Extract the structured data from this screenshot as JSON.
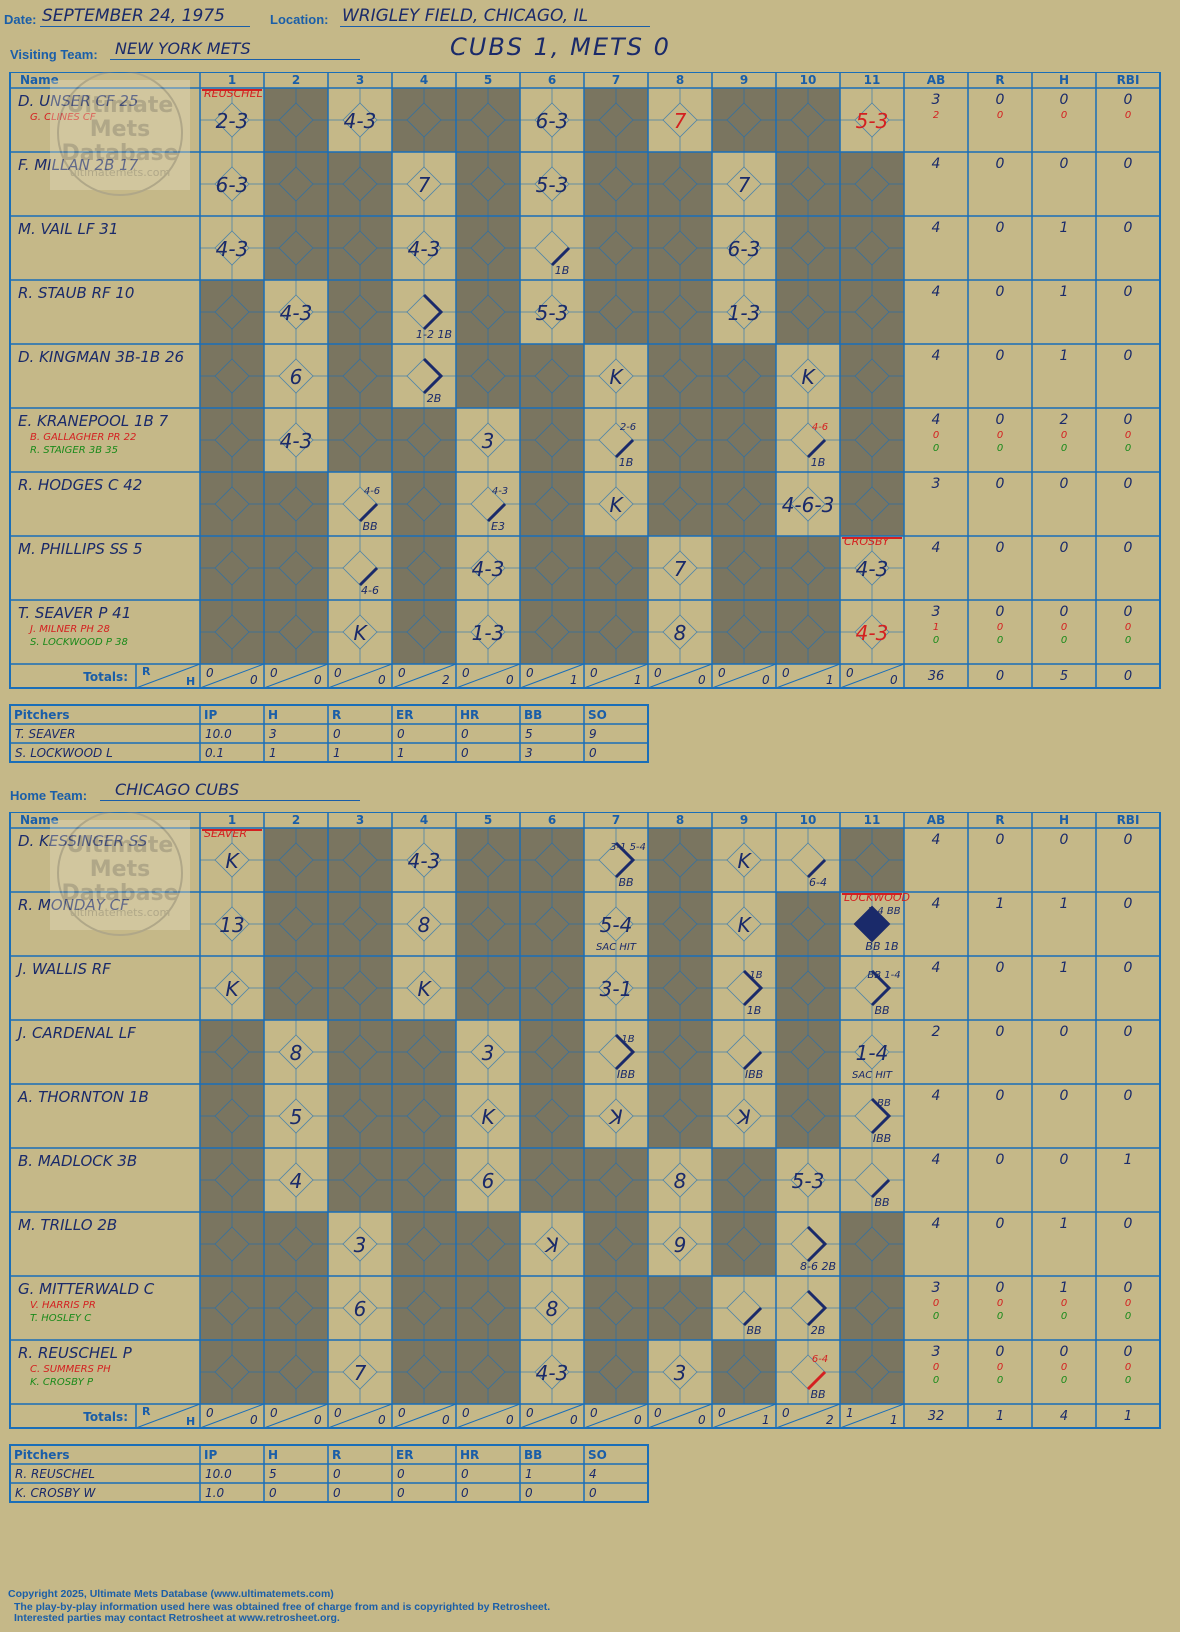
{
  "header": {
    "date_label": "Date:",
    "date": "SEPTEMBER 24, 1975",
    "location_label": "Location:",
    "location": "WRIGLEY FIELD, CHICAGO, IL",
    "score": "CUBS 1, METS 0"
  },
  "visiting": {
    "label": "Visiting Team:",
    "team": "NEW YORK METS",
    "players": [
      {
        "name": "D. UNSER CF",
        "num": "25",
        "subs": [
          {
            "name": "G. CLINES CF",
            "num": "",
            "color": "red"
          }
        ],
        "stats": {
          "AB": "3",
          "R": "0",
          "H": "0",
          "RBI": "0"
        },
        "sub_stats": [
          {
            "AB": "2",
            "R": "0",
            "H": "0",
            "RBI": "0",
            "color": "red"
          }
        ],
        "cells": [
          {
            "i": 1,
            "t": "2-3"
          },
          {
            "i": 3,
            "t": "4-3"
          },
          {
            "i": 6,
            "t": "6-3"
          },
          {
            "i": 8,
            "t": "7",
            "red": true
          },
          {
            "i": 11,
            "t": "5-3",
            "red": true
          }
        ]
      },
      {
        "name": "F. MILLAN 2B",
        "num": "17",
        "subs": [],
        "stats": {
          "AB": "4",
          "R": "0",
          "H": "0",
          "RBI": "0"
        },
        "sub_stats": [],
        "cells": [
          {
            "i": 1,
            "t": "6-3"
          },
          {
            "i": 4,
            "t": "7"
          },
          {
            "i": 6,
            "t": "5-3"
          },
          {
            "i": 9,
            "t": "7"
          }
        ]
      },
      {
        "name": "M. VAIL LF",
        "num": "31",
        "subs": [],
        "stats": {
          "AB": "4",
          "R": "0",
          "H": "1",
          "RBI": "0"
        },
        "sub_stats": [],
        "cells": [
          {
            "i": 1,
            "t": "4-3"
          },
          {
            "i": 4,
            "t": "4-3"
          },
          {
            "i": 6,
            "t": "",
            "note": "1B",
            "path": "1b"
          },
          {
            "i": 9,
            "t": "6-3"
          }
        ]
      },
      {
        "name": "R. STAUB RF",
        "num": "10",
        "subs": [],
        "stats": {
          "AB": "4",
          "R": "0",
          "H": "1",
          "RBI": "0"
        },
        "sub_stats": [],
        "cells": [
          {
            "i": 2,
            "t": "4-3"
          },
          {
            "i": 4,
            "t": "",
            "note": "1-2  1B",
            "path": "2b"
          },
          {
            "i": 6,
            "t": "5-3"
          },
          {
            "i": 9,
            "t": "1-3"
          }
        ]
      },
      {
        "name": "D. KINGMAN 3B-1B",
        "num": "26",
        "subs": [],
        "stats": {
          "AB": "4",
          "R": "0",
          "H": "1",
          "RBI": "0"
        },
        "sub_stats": [],
        "cells": [
          {
            "i": 2,
            "t": "6"
          },
          {
            "i": 4,
            "t": "",
            "note": "2B",
            "path": "2bonly"
          },
          {
            "i": 7,
            "t": "K"
          },
          {
            "i": 10,
            "t": "K"
          }
        ]
      },
      {
        "name": "E. KRANEPOOL 1B",
        "num": "7",
        "subs": [
          {
            "name": "B. GALLAGHER PR",
            "num": "22",
            "color": "red"
          },
          {
            "name": "R. STAIGER 3B",
            "num": "35",
            "color": "green"
          }
        ],
        "stats": {
          "AB": "4",
          "R": "0",
          "H": "2",
          "RBI": "0"
        },
        "sub_stats": [
          {
            "AB": "0",
            "R": "0",
            "H": "0",
            "RBI": "0",
            "color": "red"
          },
          {
            "AB": "0",
            "R": "0",
            "H": "0",
            "RBI": "0",
            "color": "green"
          }
        ],
        "cells": [
          {
            "i": 2,
            "t": "4-3"
          },
          {
            "i": 5,
            "t": "3"
          },
          {
            "i": 7,
            "t": "",
            "note": "1B",
            "top": "2-6",
            "path": "1b"
          },
          {
            "i": 10,
            "t": "",
            "note": "1B",
            "top": "4-6",
            "topred": true,
            "path": "1b"
          }
        ]
      },
      {
        "name": "R. HODGES C",
        "num": "42",
        "subs": [],
        "stats": {
          "AB": "3",
          "R": "0",
          "H": "0",
          "RBI": "0"
        },
        "sub_stats": [],
        "cells": [
          {
            "i": 3,
            "t": "",
            "note": "BB",
            "top": "4-6",
            "path": "1b"
          },
          {
            "i": 5,
            "t": "",
            "note": "E3",
            "top": "4-3",
            "path": "1b2"
          },
          {
            "i": 7,
            "t": "K"
          },
          {
            "i": 10,
            "t": "4-6-3"
          }
        ]
      },
      {
        "name": "M. PHILLIPS SS",
        "num": "5",
        "subs": [],
        "stats": {
          "AB": "4",
          "R": "0",
          "H": "0",
          "RBI": "0"
        },
        "sub_stats": [],
        "cells": [
          {
            "i": 3,
            "t": "",
            "note": "4-6",
            "path": "1b"
          },
          {
            "i": 5,
            "t": "4-3"
          },
          {
            "i": 8,
            "t": "7"
          },
          {
            "i": 11,
            "t": "4-3"
          }
        ]
      },
      {
        "name": "T. SEAVER P",
        "num": "41",
        "subs": [
          {
            "name": "J. MILNER PH",
            "num": "28",
            "color": "red"
          },
          {
            "name": "S. LOCKWOOD P",
            "num": "38",
            "color": "green"
          }
        ],
        "stats": {
          "AB": "3",
          "R": "0",
          "H": "0",
          "RBI": "0"
        },
        "sub_stats": [
          {
            "AB": "1",
            "R": "0",
            "H": "0",
            "RBI": "0",
            "color": "red"
          },
          {
            "AB": "0",
            "R": "0",
            "H": "0",
            "RBI": "0",
            "color": "green"
          }
        ],
        "cells": [
          {
            "i": 3,
            "t": "K"
          },
          {
            "i": 5,
            "t": "1-3"
          },
          {
            "i": 8,
            "t": "8"
          },
          {
            "i": 11,
            "t": "4-3",
            "red": true
          }
        ]
      }
    ],
    "pitcher_tags": [
      {
        "i": 1,
        "row": 0,
        "t": "REUSCHEL"
      },
      {
        "i": 11,
        "row": 7,
        "t": "CROSBY"
      }
    ],
    "totals_label": "Totals:",
    "innings_totals": [
      [
        "0",
        "0"
      ],
      [
        "0",
        "0"
      ],
      [
        "0",
        "0"
      ],
      [
        "0",
        "2"
      ],
      [
        "0",
        "0"
      ],
      [
        "0",
        "1"
      ],
      [
        "0",
        "1"
      ],
      [
        "0",
        "0"
      ],
      [
        "0",
        "0"
      ],
      [
        "0",
        "1"
      ],
      [
        "0",
        "0"
      ]
    ],
    "game_totals": {
      "AB": "36",
      "R": "0",
      "H": "5",
      "RBI": "0"
    },
    "pitchers": [
      {
        "name": "T. SEAVER",
        "IP": "10.0",
        "H": "3",
        "R": "0",
        "ER": "0",
        "HR": "0",
        "BB": "5",
        "SO": "9"
      },
      {
        "name": "S. LOCKWOOD  L",
        "IP": "0.1",
        "H": "1",
        "R": "1",
        "ER": "1",
        "HR": "0",
        "BB": "3",
        "SO": "0"
      }
    ]
  },
  "home": {
    "label": "Home Team:",
    "team": "CHICAGO CUBS",
    "players": [
      {
        "name": "D. KESSINGER SS",
        "num": "",
        "subs": [],
        "stats": {
          "AB": "4",
          "R": "0",
          "H": "0",
          "RBI": "0"
        },
        "sub_stats": [],
        "cells": [
          {
            "i": 1,
            "t": "K"
          },
          {
            "i": 4,
            "t": "4-3"
          },
          {
            "i": 7,
            "t": "",
            "note": "BB",
            "top": "3-1  5-4",
            "path": "2b"
          },
          {
            "i": 9,
            "t": "K"
          },
          {
            "i": 10,
            "t": "",
            "note": "6-4",
            "path": "1b"
          }
        ]
      },
      {
        "name": "R. MONDAY CF",
        "num": "",
        "subs": [],
        "stats": {
          "AB": "4",
          "R": "1",
          "H": "1",
          "RBI": "0"
        },
        "sub_stats": [],
        "cells": [
          {
            "i": 1,
            "t": "13"
          },
          {
            "i": 4,
            "t": "8"
          },
          {
            "i": 7,
            "t": "5-4",
            "under": "SAC HIT"
          },
          {
            "i": 9,
            "t": "K"
          },
          {
            "i": 11,
            "t": "",
            "note": "BB  1B",
            "top": "1-4  BB",
            "path": "run"
          }
        ]
      },
      {
        "name": "J. WALLIS RF",
        "num": "",
        "subs": [],
        "stats": {
          "AB": "4",
          "R": "0",
          "H": "1",
          "RBI": "0"
        },
        "sub_stats": [],
        "cells": [
          {
            "i": 1,
            "t": "K"
          },
          {
            "i": 4,
            "t": "K"
          },
          {
            "i": 7,
            "t": "3-1"
          },
          {
            "i": 9,
            "t": "",
            "note": "1B",
            "top": "1B",
            "path": "2b"
          },
          {
            "i": 11,
            "t": "",
            "note": "BB",
            "top": "BB  1-4",
            "path": "2b"
          }
        ]
      },
      {
        "name": "J. CARDENAL LF",
        "num": "",
        "subs": [],
        "stats": {
          "AB": "2",
          "R": "0",
          "H": "0",
          "RBI": "0"
        },
        "sub_stats": [],
        "cells": [
          {
            "i": 2,
            "t": "8"
          },
          {
            "i": 5,
            "t": "3"
          },
          {
            "i": 7,
            "t": "",
            "note": "IBB",
            "top": "1B",
            "path": "2b"
          },
          {
            "i": 9,
            "t": "",
            "note": "IBB",
            "path": "1b"
          },
          {
            "i": 11,
            "t": "1-4",
            "under": "SAC HIT"
          }
        ]
      },
      {
        "name": "A. THORNTON 1B",
        "num": "",
        "subs": [],
        "stats": {
          "AB": "4",
          "R": "0",
          "H": "0",
          "RBI": "0"
        },
        "sub_stats": [],
        "cells": [
          {
            "i": 2,
            "t": "5"
          },
          {
            "i": 5,
            "t": "K"
          },
          {
            "i": 7,
            "t": "ꓘ"
          },
          {
            "i": 9,
            "t": "ꓘ"
          },
          {
            "i": 11,
            "t": "",
            "note": "IBB",
            "top": "BB",
            "path": "2b"
          }
        ]
      },
      {
        "name": "B. MADLOCK 3B",
        "num": "",
        "subs": [],
        "stats": {
          "AB": "4",
          "R": "0",
          "H": "0",
          "RBI": "1"
        },
        "sub_stats": [],
        "cells": [
          {
            "i": 2,
            "t": "4"
          },
          {
            "i": 5,
            "t": "6"
          },
          {
            "i": 8,
            "t": "8"
          },
          {
            "i": 10,
            "t": "5-3"
          },
          {
            "i": 11,
            "t": "",
            "note": "BB",
            "path": "1b"
          }
        ]
      },
      {
        "name": "M. TRILLO 2B",
        "num": "",
        "subs": [],
        "stats": {
          "AB": "4",
          "R": "0",
          "H": "1",
          "RBI": "0"
        },
        "sub_stats": [],
        "cells": [
          {
            "i": 3,
            "t": "3"
          },
          {
            "i": 6,
            "t": "ꓘ"
          },
          {
            "i": 8,
            "t": "9"
          },
          {
            "i": 10,
            "t": "",
            "note": "8-6  2B",
            "path": "2bonly"
          }
        ]
      },
      {
        "name": "G. MITTERWALD C",
        "num": "",
        "subs": [
          {
            "name": "V. HARRIS PR",
            "num": "",
            "color": "red"
          },
          {
            "name": "T. HOSLEY C",
            "num": "",
            "color": "green"
          }
        ],
        "stats": {
          "AB": "3",
          "R": "0",
          "H": "1",
          "RBI": "0"
        },
        "sub_stats": [
          {
            "AB": "0",
            "R": "0",
            "H": "0",
            "RBI": "0",
            "color": "red"
          },
          {
            "AB": "0",
            "R": "0",
            "H": "0",
            "RBI": "0",
            "color": "green"
          }
        ],
        "cells": [
          {
            "i": 3,
            "t": "6"
          },
          {
            "i": 6,
            "t": "8"
          },
          {
            "i": 9,
            "t": "",
            "note": "BB",
            "path": "1b"
          },
          {
            "i": 10,
            "t": "",
            "note": "2B",
            "path": "2bonly"
          }
        ]
      },
      {
        "name": "R. REUSCHEL P",
        "num": "",
        "subs": [
          {
            "name": "C. SUMMERS PH",
            "num": "",
            "color": "red"
          },
          {
            "name": "K. CROSBY P",
            "num": "",
            "color": "green"
          }
        ],
        "stats": {
          "AB": "3",
          "R": "0",
          "H": "0",
          "RBI": "0"
        },
        "sub_stats": [
          {
            "AB": "0",
            "R": "0",
            "H": "0",
            "RBI": "0",
            "color": "red"
          },
          {
            "AB": "0",
            "R": "0",
            "H": "0",
            "RBI": "0",
            "color": "green"
          }
        ],
        "cells": [
          {
            "i": 3,
            "t": "7"
          },
          {
            "i": 6,
            "t": "4-3"
          },
          {
            "i": 8,
            "t": "3"
          },
          {
            "i": 10,
            "t": "",
            "note": "BB",
            "top": "6-4",
            "topred": true,
            "path": "1bred"
          }
        ]
      }
    ],
    "pitcher_tags": [
      {
        "i": 1,
        "row": 0,
        "t": "SEAVER"
      },
      {
        "i": 11,
        "row": 1,
        "t": "LOCKWOOD"
      }
    ],
    "totals_label": "Totals:",
    "innings_totals": [
      [
        "0",
        "0"
      ],
      [
        "0",
        "0"
      ],
      [
        "0",
        "0"
      ],
      [
        "0",
        "0"
      ],
      [
        "0",
        "0"
      ],
      [
        "0",
        "0"
      ],
      [
        "0",
        "0"
      ],
      [
        "0",
        "0"
      ],
      [
        "0",
        "1"
      ],
      [
        "0",
        "2"
      ],
      [
        "1",
        "1"
      ]
    ],
    "game_totals": {
      "AB": "32",
      "R": "1",
      "H": "4",
      "RBI": "1"
    },
    "pitchers": [
      {
        "name": "R. REUSCHEL",
        "IP": "10.0",
        "H": "5",
        "R": "0",
        "ER": "0",
        "HR": "0",
        "BB": "1",
        "SO": "4"
      },
      {
        "name": "K. CROSBY  W",
        "IP": "1.0",
        "H": "0",
        "R": "0",
        "ER": "0",
        "HR": "0",
        "BB": "0",
        "SO": "0"
      }
    ]
  },
  "grid_headers": {
    "name": "Name",
    "innings": [
      "1",
      "2",
      "3",
      "4",
      "5",
      "6",
      "7",
      "8",
      "9",
      "10",
      "11"
    ],
    "stats": [
      "AB",
      "R",
      "H",
      "RBI"
    ],
    "rh": [
      "R",
      "H"
    ]
  },
  "pitcher_headers": [
    "Pitchers",
    "IP",
    "H",
    "R",
    "ER",
    "HR",
    "BB",
    "SO"
  ],
  "watermark": {
    "line1": "Ultimate",
    "line2": "Mets",
    "line3": "Database",
    "url": "ultimatemets.com"
  },
  "footer": {
    "line1": "Copyright 2025, Ultimate Mets Database (www.ultimatemets.com)",
    "line2": "The play-by-play information used here was obtained free of charge from and is copyrighted by Retrosheet.",
    "line3": "Interested parties may contact Retrosheet at www.retrosheet.org."
  },
  "colors": {
    "paper": "#c5b888",
    "grid": "#1a6eb8",
    "dark": "#7a7560",
    "ink": "#1a2a6a",
    "red": "#d42020",
    "green": "#1a8a1a"
  }
}
